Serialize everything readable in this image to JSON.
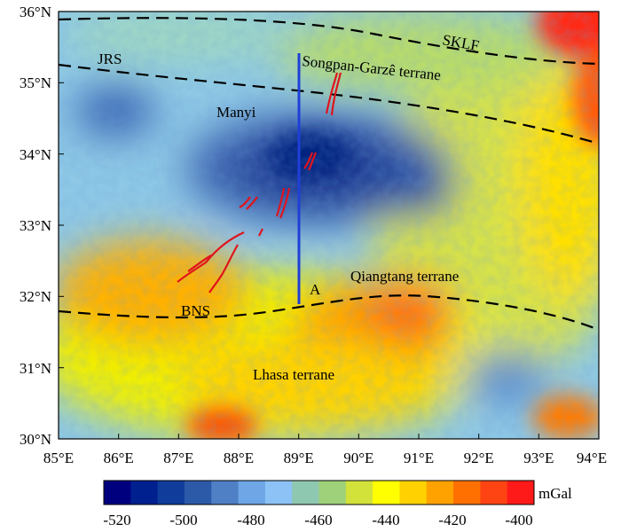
{
  "map": {
    "lon_ticks": [
      "85°E",
      "86°E",
      "87°E",
      "88°E",
      "89°E",
      "90°E",
      "91°E",
      "92°E",
      "93°E",
      "94°E"
    ],
    "lat_ticks": [
      "36°N",
      "35°N",
      "34°N",
      "33°N",
      "32°N",
      "31°N",
      "30°N"
    ],
    "labels": {
      "jrs": "JRS",
      "sklf": "SKLF",
      "songpan": "Songpan-Garzê terrane",
      "manyi": "Manyi",
      "qiangtang": "Qiangtang terrane",
      "a": "A",
      "bns": "BNS",
      "lhasa": "Lhasa terrane"
    }
  },
  "colorbar": {
    "unit": "mGal",
    "tick_labels": [
      "-520",
      "-500",
      "-480",
      "-460",
      "-440",
      "-420",
      "-400"
    ],
    "colors": [
      "#00007f",
      "#00208f",
      "#103c9c",
      "#2d5aa8",
      "#4f7fc4",
      "#6ea6e6",
      "#8cc2f5",
      "#8fc8b0",
      "#9fd07a",
      "#d2e23a",
      "#ffff00",
      "#ffd100",
      "#ffa200",
      "#ff7000",
      "#ff4414",
      "#ff1a1a"
    ]
  }
}
